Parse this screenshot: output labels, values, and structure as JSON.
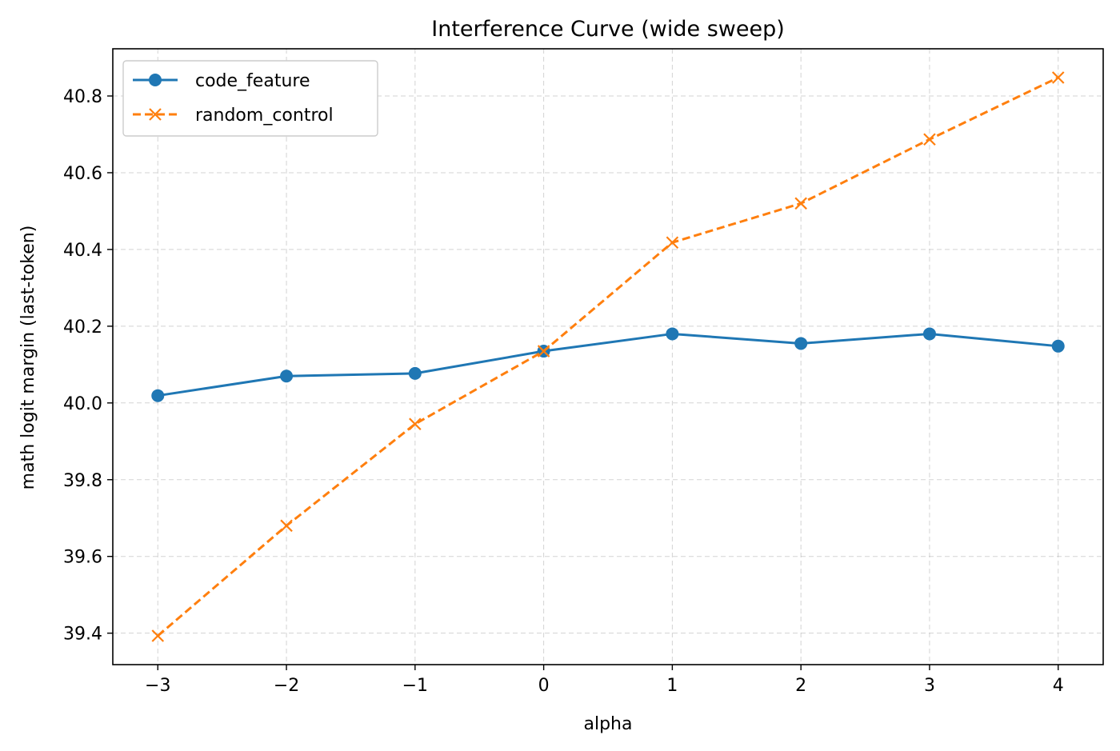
{
  "chart_data": {
    "type": "line",
    "title": "Interference Curve (wide sweep)",
    "xlabel": "alpha",
    "ylabel": "math logit margin (last-token)",
    "x": [
      -3,
      -2,
      -1,
      0,
      1,
      2,
      3,
      4
    ],
    "x_tick_labels": [
      "−3",
      "−2",
      "−1",
      "0",
      "1",
      "2",
      "3",
      "4"
    ],
    "y_ticks": [
      39.4,
      39.6,
      39.8,
      40.0,
      40.2,
      40.4,
      40.6,
      40.8
    ],
    "y_tick_labels": [
      "39.4",
      "39.6",
      "39.8",
      "40.0",
      "40.2",
      "40.4",
      "40.6",
      "40.8"
    ],
    "xlim": [
      -3.35,
      4.35
    ],
    "ylim": [
      39.318,
      40.923
    ],
    "grid": true,
    "legend_position": "upper-left",
    "series": [
      {
        "name": "code_feature",
        "color": "#1f77b4",
        "line_style": "solid",
        "marker": "circle",
        "values": [
          40.019,
          40.07,
          40.077,
          40.135,
          40.18,
          40.155,
          40.18,
          40.148
        ]
      },
      {
        "name": "random_control",
        "color": "#ff7f0e",
        "line_style": "dashed",
        "marker": "x",
        "values": [
          39.393,
          39.68,
          39.945,
          40.135,
          40.418,
          40.52,
          40.687,
          40.848
        ]
      }
    ]
  }
}
